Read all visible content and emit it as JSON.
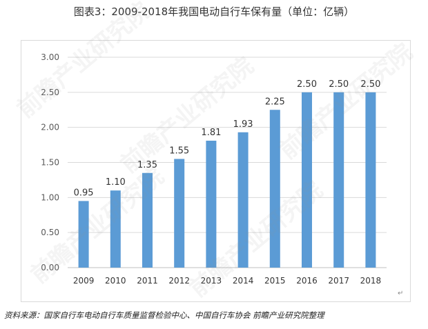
{
  "title": "图表3：2009-2018年我国电动自行车保有量（单位：亿辆）",
  "source": "资料来源：国家自行车电动自行车质量监督检验中心、中国自行车协会 前瞻产业研究院整理",
  "corner_mark": "↵",
  "watermark": "前瞻产业研究院",
  "chart_data": {
    "type": "bar",
    "title": "图表3：2009-2018年我国电动自行车保有量（单位：亿辆）",
    "categories": [
      "2009",
      "2010",
      "2011",
      "2012",
      "2013",
      "2014",
      "2015",
      "2016",
      "2017",
      "2018"
    ],
    "values": [
      0.95,
      1.1,
      1.35,
      1.55,
      1.81,
      1.93,
      2.25,
      2.5,
      2.5,
      2.5
    ],
    "value_labels": [
      "0.95",
      "1.10",
      "1.35",
      "1.55",
      "1.81",
      "1.93",
      "2.25",
      "2.50",
      "2.50",
      "2.50"
    ],
    "yticks": [
      "0.00",
      "0.50",
      "1.00",
      "1.50",
      "2.00",
      "2.50",
      "3.00"
    ],
    "ylim": [
      0,
      3
    ],
    "xlabel": "",
    "ylabel": "",
    "grid": true,
    "legend": "none",
    "bar_color": "#5b9bd5",
    "grid_color": "#d9d9d9"
  }
}
